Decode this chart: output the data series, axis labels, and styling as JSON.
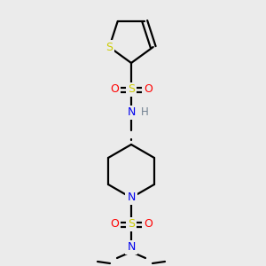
{
  "background_color": "#ebebeb",
  "atom_colors": {
    "C": "#000000",
    "N": "#0000ee",
    "O": "#ff0000",
    "S": "#cccc00",
    "H": "#708090"
  },
  "bond_color": "#000000",
  "figsize": [
    3.0,
    3.0
  ],
  "dpi": 100
}
